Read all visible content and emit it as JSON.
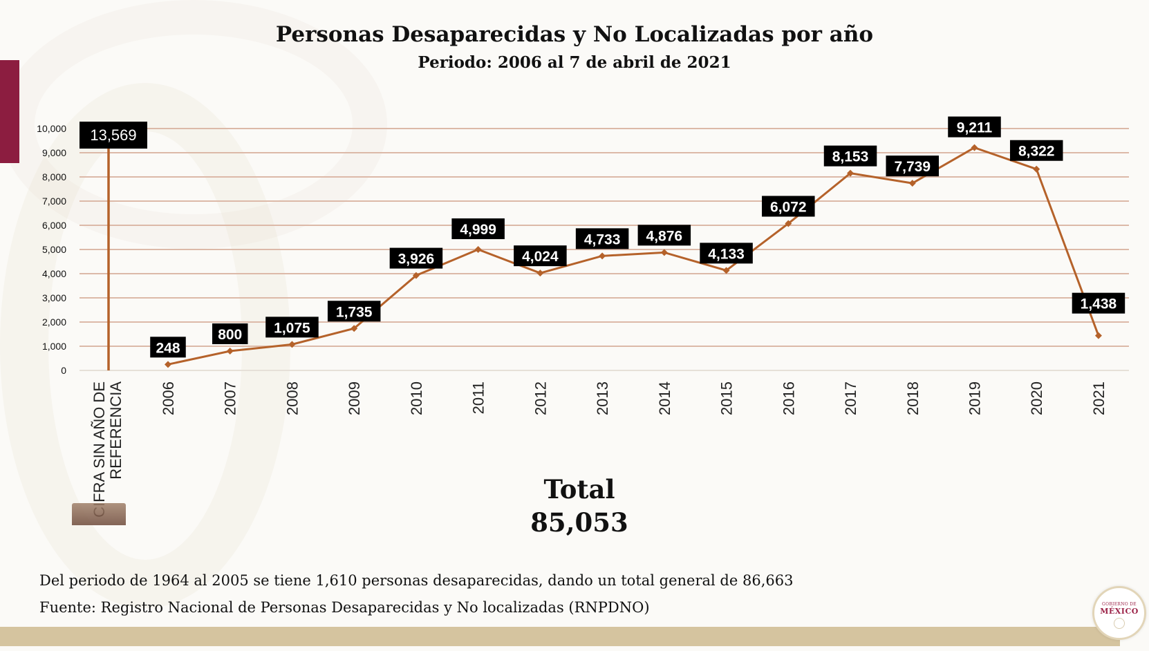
{
  "chart_data": {
    "type": "line",
    "title": "Personas Desaparecidas y No Localizadas por año",
    "subtitle": "Periodo: 2006 al 7 de abril de 2021",
    "categories": [
      "2006",
      "2007",
      "2008",
      "2009",
      "2010",
      "2011",
      "2012",
      "2013",
      "2014",
      "2015",
      "2016",
      "2017",
      "2018",
      "2019",
      "2020",
      "2021"
    ],
    "values": [
      248,
      800,
      1075,
      1735,
      3926,
      4999,
      4024,
      4733,
      4876,
      4133,
      6072,
      8153,
      7739,
      9211,
      8322,
      1438
    ],
    "data_labels": [
      "248",
      "800",
      "1,075",
      "1,735",
      "3,926",
      "4,999",
      "4,024",
      "4,733",
      "4,876",
      "4,133",
      "6,072",
      "8,153",
      "7,739",
      "9,211",
      "8,322",
      "1,438"
    ],
    "no_year": {
      "label_lines": [
        "CIFRA SIN AÑO DE",
        "REFERENCIA"
      ],
      "value": 13569,
      "data_label": "13,569"
    },
    "yticks": [
      "0",
      "1,000",
      "2,000",
      "3,000",
      "4,000",
      "5,000",
      "6,000",
      "7,000",
      "8,000",
      "9,000",
      "10,000"
    ],
    "ylim": [
      0,
      10000
    ],
    "grid": true,
    "line_color": "#b5622a",
    "grid_color": "#dcb9a8",
    "label_bg": "#000000"
  },
  "total": {
    "label": "Total",
    "value": "85,053"
  },
  "notes": [
    "Del periodo de 1964 al 2005 se tiene 1,610 personas desaparecidas, dando un total general de 86,663",
    "Fuente: Registro Nacional de Personas Desaparecidas y No localizadas (RNPDNO)"
  ],
  "logo": {
    "line1": "GOBIERNO DE",
    "line2": "MÉXICO"
  },
  "colors": {
    "accent_red": "#8c1d40",
    "band": "#d5c49f"
  }
}
